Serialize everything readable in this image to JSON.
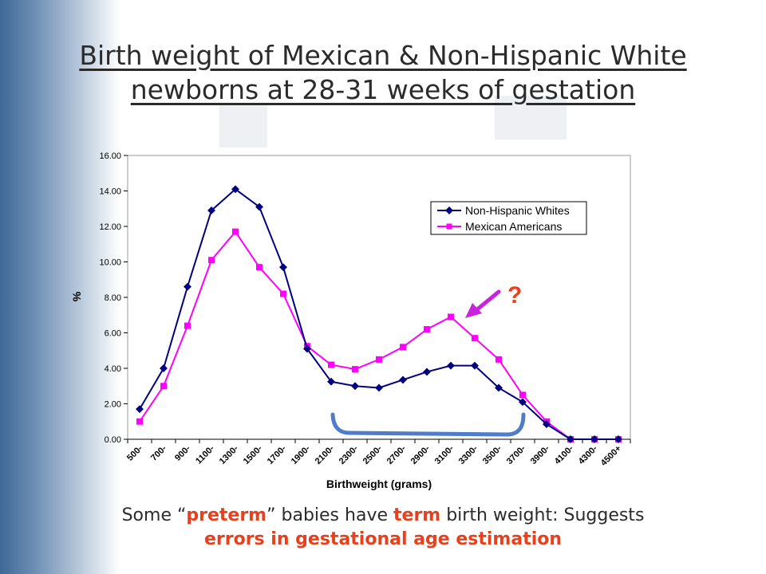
{
  "title_line1": "Birth weight of Mexican & Non-Hispanic White",
  "title_line2": "newborns at 28-31 weeks of gestation",
  "caption": {
    "part1": "Some “",
    "preterm": "preterm",
    "part2": "” babies have ",
    "term": "term",
    "part3": " birth weight: Suggests",
    "line2": "errors in gestational age estimation"
  },
  "annotation": "?",
  "colors": {
    "non_hispanic": "#000080",
    "mexican": "#ff00ff",
    "bracket": "#4f7dc9",
    "arrow": "#cc22dd",
    "highlight": "#e8401c"
  },
  "chart_data": {
    "type": "line",
    "xlabel": "Birthweight (grams)",
    "ylabel": "%",
    "ylim": [
      0,
      16
    ],
    "y_ticks": [
      "0.00",
      "2.00",
      "4.00",
      "6.00",
      "8.00",
      "10.00",
      "12.00",
      "14.00",
      "16.00"
    ],
    "categories": [
      "500-",
      "700-",
      "900-",
      "1100-",
      "1300-",
      "1500-",
      "1700-",
      "1900-",
      "2100-",
      "2300-",
      "2500-",
      "2700-",
      "2900-",
      "3100-",
      "3300-",
      "3500-",
      "3700-",
      "3900-",
      "4100-",
      "4300-",
      "4500+"
    ],
    "legend_position": "top-right",
    "grid": false,
    "series": [
      {
        "name": "Non-Hispanic Whites",
        "marker": "diamond",
        "values": [
          1.7,
          4.0,
          8.6,
          12.9,
          14.1,
          13.1,
          9.7,
          5.1,
          3.25,
          3.0,
          2.9,
          3.35,
          3.8,
          4.15,
          4.15,
          2.9,
          2.1,
          0.85,
          0.0,
          0.0,
          0.0
        ]
      },
      {
        "name": "Mexican Americans",
        "marker": "square",
        "values": [
          1.0,
          3.0,
          6.4,
          10.1,
          11.7,
          9.7,
          8.2,
          5.25,
          4.2,
          3.95,
          4.5,
          5.2,
          6.2,
          6.9,
          5.7,
          4.5,
          2.5,
          1.0,
          0.0,
          0.0,
          0.0
        ]
      }
    ]
  }
}
